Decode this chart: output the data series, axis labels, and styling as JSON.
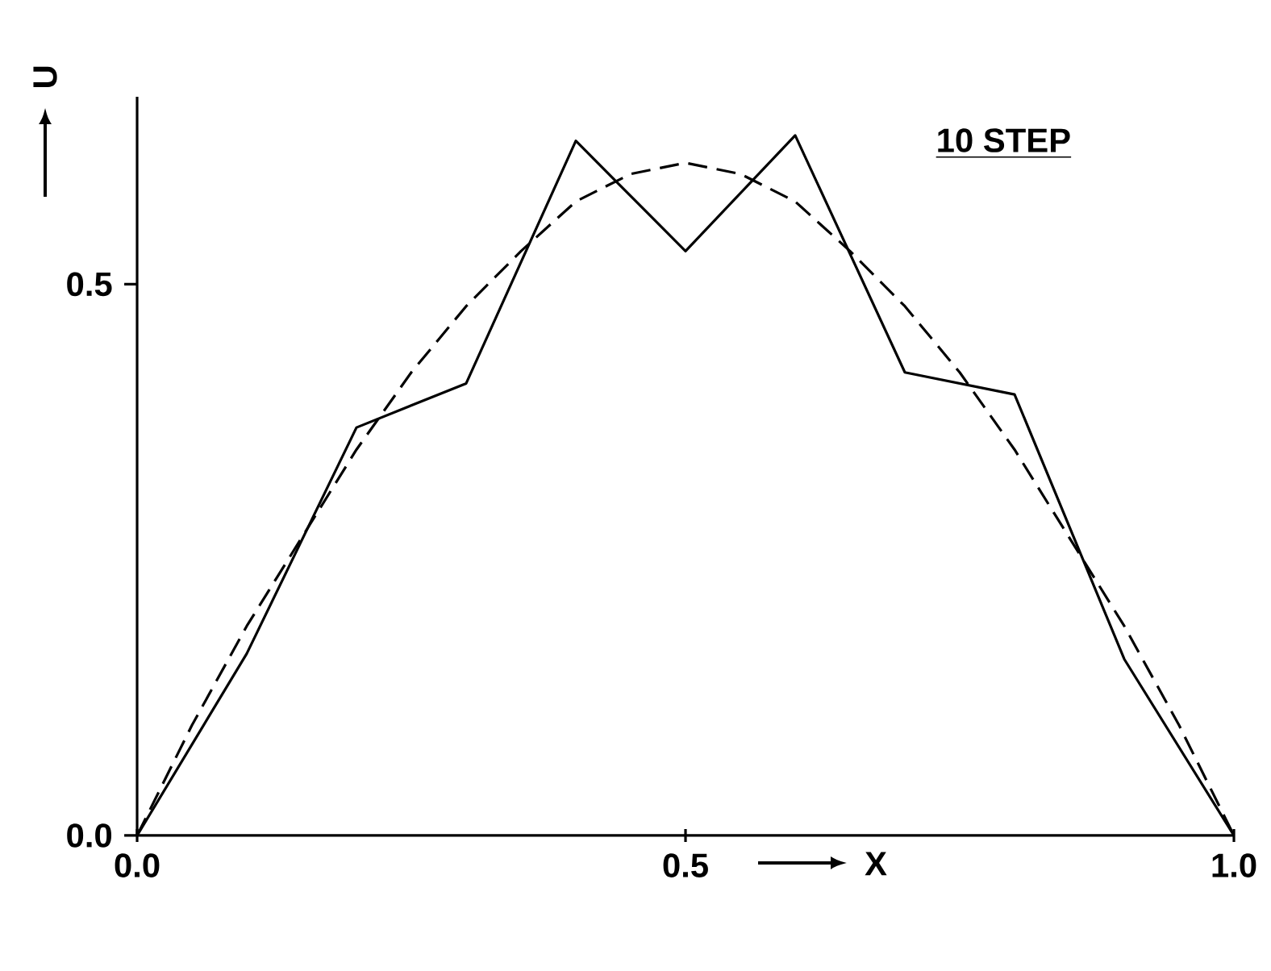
{
  "chart_data": {
    "type": "line",
    "xlabel": "X",
    "ylabel": "U",
    "annotations": [
      "10 STEP"
    ],
    "xlim": [
      0,
      1
    ],
    "ylim": [
      0,
      0.67
    ],
    "xticks": [
      {
        "value": 0,
        "label": "0.0"
      },
      0.5,
      {
        "value": 1,
        "label": "1.0"
      }
    ],
    "yticks": [
      {
        "value": 0,
        "label": "0.0"
      },
      0.5
    ],
    "grid": false,
    "marker": "none",
    "series": [
      {
        "color": "#000000",
        "line_style": "solid",
        "x": [
          0,
          0.1,
          0.2,
          0.3,
          0.4,
          0.5,
          0.6,
          0.7,
          0.8,
          0.9,
          1.0
        ],
        "values": [
          0,
          0.165,
          0.37,
          0.41,
          0.63,
          0.53,
          0.635,
          0.42,
          0.4,
          0.16,
          0
        ]
      },
      {
        "color": "#000000",
        "line_style": "dashed",
        "x": [
          0,
          0.05,
          0.1,
          0.15,
          0.2,
          0.25,
          0.3,
          0.35,
          0.4,
          0.45,
          0.5,
          0.55,
          0.6,
          0.65,
          0.7,
          0.75,
          0.8,
          0.85,
          0.9,
          0.95,
          1.0
        ],
        "values": [
          0,
          0.1,
          0.19,
          0.27,
          0.35,
          0.42,
          0.48,
          0.53,
          0.575,
          0.6,
          0.61,
          0.6,
          0.575,
          0.53,
          0.48,
          0.42,
          0.35,
          0.27,
          0.19,
          0.1,
          0
        ]
      }
    ]
  }
}
